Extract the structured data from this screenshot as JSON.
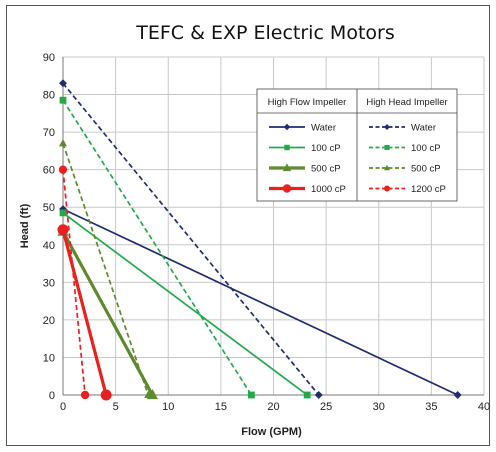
{
  "chart_data": {
    "type": "line",
    "title": "TEFC & EXP Electric Motors",
    "xlabel": "Flow (GPM)",
    "ylabel": "Head (ft)",
    "xlim": [
      0,
      40
    ],
    "ylim": [
      0,
      90
    ],
    "xticks": [
      0,
      5,
      10,
      15,
      20,
      25,
      30,
      35,
      40
    ],
    "yticks": [
      0,
      10,
      20,
      30,
      40,
      50,
      60,
      70,
      80,
      90
    ],
    "grid": true,
    "legend_position": "top-right",
    "legend_headers": [
      "High Flow Impeller",
      "High Head Impeller"
    ],
    "series": [
      {
        "name": "Water",
        "group": "High Flow Impeller",
        "color": "#1f2d6e",
        "dash": "solid",
        "marker": "diamond",
        "points": [
          [
            0,
            49.5
          ],
          [
            37.5,
            0
          ]
        ]
      },
      {
        "name": "100 cP",
        "group": "High Flow Impeller",
        "color": "#22aa4a",
        "dash": "solid",
        "marker": "square",
        "points": [
          [
            0,
            48.5
          ],
          [
            23.2,
            0
          ]
        ]
      },
      {
        "name": "500 cP",
        "group": "High Flow Impeller",
        "color": "#5c8a2c",
        "dash": "solid",
        "marker": "triangle",
        "points": [
          [
            0,
            43.5
          ],
          [
            8.5,
            0
          ]
        ]
      },
      {
        "name": "1000 cP",
        "group": "High Flow Impeller",
        "color": "#e8201e",
        "dash": "solid",
        "marker": "circle",
        "points": [
          [
            0,
            44
          ],
          [
            4.1,
            0
          ]
        ]
      },
      {
        "name": "Water",
        "group": "High Head Impeller",
        "color": "#1f2d6e",
        "dash": "dashed",
        "marker": "diamond",
        "points": [
          [
            0,
            83
          ],
          [
            24.3,
            0
          ]
        ]
      },
      {
        "name": "100 cP",
        "group": "High Head Impeller",
        "color": "#22aa4a",
        "dash": "dashed",
        "marker": "square",
        "points": [
          [
            0,
            78.5
          ],
          [
            17.9,
            0
          ]
        ]
      },
      {
        "name": "500 cP",
        "group": "High Head Impeller",
        "color": "#5c8a2c",
        "dash": "dashed",
        "marker": "triangle",
        "points": [
          [
            0,
            67
          ],
          [
            8.1,
            0
          ]
        ]
      },
      {
        "name": "1200 cP",
        "group": "High Head Impeller",
        "color": "#e8201e",
        "dash": "dashed",
        "marker": "circle",
        "points": [
          [
            0,
            60
          ],
          [
            2.1,
            0
          ]
        ]
      }
    ]
  }
}
